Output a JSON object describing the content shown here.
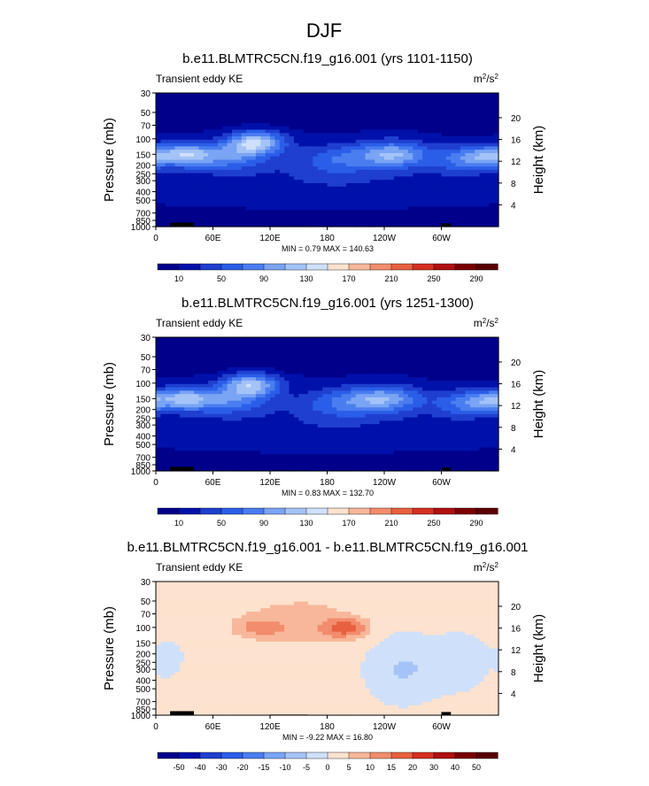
{
  "figure": {
    "title": "DJF"
  },
  "chart_data": [
    {
      "type": "heatmap",
      "title": "b.e11.BLMTRC5CN.f19_g16.001 (yrs 1101-1150)",
      "subtitle": "Transient eddy KE",
      "units": "m^2/s^2",
      "xlabel": "",
      "ylabel": "Pressure (mb)",
      "y2label": "Height (km)",
      "x_ticks": [
        "0",
        "60E",
        "120E",
        "180",
        "120W",
        "60W"
      ],
      "x_values": [
        0,
        60,
        120,
        180,
        240,
        300
      ],
      "xlim": [
        0,
        360
      ],
      "y_ticks": [
        30,
        50,
        70,
        100,
        150,
        200,
        250,
        300,
        400,
        500,
        700,
        850,
        1000
      ],
      "y_scale": "log",
      "ylim": [
        1000,
        30
      ],
      "y2_ticks": [
        4,
        8,
        12,
        16,
        20
      ],
      "stats_text": "MIN =   0.79  MAX = 140.63",
      "min": 0.79,
      "max": 140.63,
      "colorbar_labels": [
        "10",
        "50",
        "90",
        "130",
        "170",
        "210",
        "250",
        "290"
      ],
      "approx_peaks": [
        {
          "lon": 105,
          "pressure": 100,
          "value": 130
        },
        {
          "lon": 25,
          "pressure": 150,
          "value": 115
        },
        {
          "lon": 245,
          "pressure": 150,
          "value": 110
        }
      ]
    },
    {
      "type": "heatmap",
      "title": "b.e11.BLMTRC5CN.f19_g16.001 (yrs 1251-1300)",
      "subtitle": "Transient eddy KE",
      "units": "m^2/s^2",
      "xlabel": "",
      "ylabel": "Pressure (mb)",
      "y2label": "Height (km)",
      "x_ticks": [
        "0",
        "60E",
        "120E",
        "180",
        "120W",
        "60W"
      ],
      "x_values": [
        0,
        60,
        120,
        180,
        240,
        300
      ],
      "xlim": [
        0,
        360
      ],
      "y_ticks": [
        30,
        50,
        70,
        100,
        150,
        200,
        250,
        300,
        400,
        500,
        700,
        850,
        1000
      ],
      "y_scale": "log",
      "ylim": [
        1000,
        30
      ],
      "y2_ticks": [
        4,
        8,
        12,
        16,
        20
      ],
      "stats_text": "MIN =   0.83  MAX = 132.70",
      "min": 0.83,
      "max": 132.7,
      "colorbar_labels": [
        "10",
        "50",
        "90",
        "130",
        "170",
        "210",
        "250",
        "290"
      ],
      "approx_peaks": [
        {
          "lon": 100,
          "pressure": 100,
          "value": 125
        },
        {
          "lon": 25,
          "pressure": 150,
          "value": 110
        },
        {
          "lon": 235,
          "pressure": 150,
          "value": 105
        }
      ]
    },
    {
      "type": "heatmap",
      "title": "b.e11.BLMTRC5CN.f19_g16.001 - b.e11.BLMTRC5CN.f19_g16.001",
      "subtitle": "Transient eddy KE",
      "units": "m^2/s^2",
      "xlabel": "",
      "ylabel": "Pressure (mb)",
      "y2label": "Height (km)",
      "x_ticks": [
        "0",
        "60E",
        "120E",
        "180",
        "120W",
        "60W"
      ],
      "x_values": [
        0,
        60,
        120,
        180,
        240,
        300
      ],
      "xlim": [
        0,
        360
      ],
      "y_ticks": [
        30,
        50,
        70,
        100,
        150,
        200,
        250,
        300,
        400,
        500,
        700,
        850,
        1000
      ],
      "y_scale": "log",
      "ylim": [
        1000,
        30
      ],
      "y2_ticks": [
        4,
        8,
        12,
        16,
        20
      ],
      "stats_text": "MIN =  -9.22  MAX =  16.80",
      "min": -9.22,
      "max": 16.8,
      "colorbar_labels": [
        "-50",
        "-40",
        "-30",
        "-20",
        "-15",
        "-10",
        "-5",
        "0",
        "5",
        "10",
        "15",
        "20",
        "30",
        "40",
        "50"
      ],
      "approx_peaks": [
        {
          "lon": 200,
          "pressure": 100,
          "value": 16
        },
        {
          "lon": 110,
          "pressure": 100,
          "value": 12
        },
        {
          "lon": 240,
          "pressure": 200,
          "value": -8
        }
      ]
    }
  ],
  "colormaps": {
    "abs": [
      "#00008b",
      "#0011aa",
      "#1f3fcf",
      "#2b5ee8",
      "#4a7df0",
      "#7aa4f4",
      "#a4c3f7",
      "#cfe0fa",
      "#fde2cf",
      "#f8b79a",
      "#f28c6c",
      "#e8603e",
      "#d53020",
      "#b01010",
      "#7a0000"
    ],
    "diff": [
      "#00008b",
      "#0011aa",
      "#1f3fcf",
      "#2b5ee8",
      "#4a7df0",
      "#7aa4f4",
      "#a4c3f7",
      "#cfe0fa",
      "#fde2cf",
      "#f8b79a",
      "#f28c6c",
      "#e8603e",
      "#d53020",
      "#b01010",
      "#7a0000",
      "#5a0000"
    ]
  },
  "land_color": "#000000",
  "background_color": "#ffffff"
}
